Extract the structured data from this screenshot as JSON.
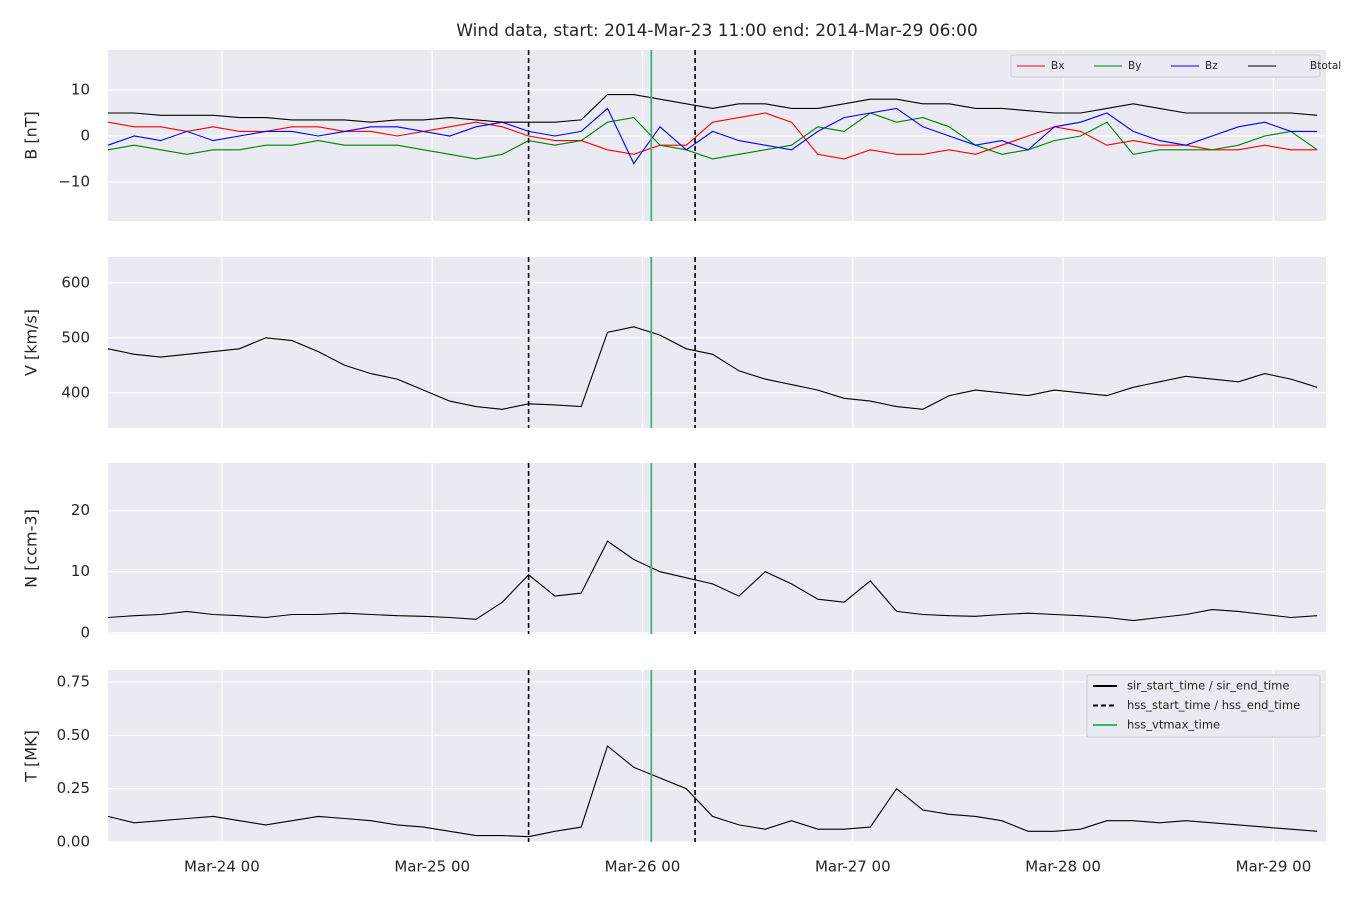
{
  "title": "Wind data, start: 2014-Mar-23 11:00  end: 2014-Mar-29 06:00",
  "x": [
    "2014-03-23 11:00",
    "2014-03-23 14:00",
    "2014-03-23 17:00",
    "2014-03-23 20:00",
    "2014-03-23 23:00",
    "2014-03-24 02:00",
    "2014-03-24 05:00",
    "2014-03-24 08:00",
    "2014-03-24 11:00",
    "2014-03-24 14:00",
    "2014-03-24 17:00",
    "2014-03-24 20:00",
    "2014-03-24 23:00",
    "2014-03-25 02:00",
    "2014-03-25 05:00",
    "2014-03-25 08:00",
    "2014-03-25 11:00",
    "2014-03-25 14:00",
    "2014-03-25 17:00",
    "2014-03-25 20:00",
    "2014-03-25 23:00",
    "2014-03-26 02:00",
    "2014-03-26 05:00",
    "2014-03-26 08:00",
    "2014-03-26 11:00",
    "2014-03-26 14:00",
    "2014-03-26 17:00",
    "2014-03-26 20:00",
    "2014-03-26 23:00",
    "2014-03-27 02:00",
    "2014-03-27 05:00",
    "2014-03-27 08:00",
    "2014-03-27 11:00",
    "2014-03-27 14:00",
    "2014-03-27 17:00",
    "2014-03-27 20:00",
    "2014-03-27 23:00",
    "2014-03-28 02:00",
    "2014-03-28 05:00",
    "2014-03-28 08:00",
    "2014-03-28 11:00",
    "2014-03-28 14:00",
    "2014-03-28 17:00",
    "2014-03-28 20:00",
    "2014-03-28 23:00",
    "2014-03-29 02:00",
    "2014-03-29 05:00"
  ],
  "x_axis": {
    "xlim": [
      "2014-03-23 11:00",
      "2014-03-29 06:00"
    ],
    "xticks": [
      {
        "value": "2014-03-24 00:00",
        "label": "Mar-24 00"
      },
      {
        "value": "2014-03-25 00:00",
        "label": "Mar-25 00"
      },
      {
        "value": "2014-03-26 00:00",
        "label": "Mar-26 00"
      },
      {
        "value": "2014-03-27 00:00",
        "label": "Mar-27 00"
      },
      {
        "value": "2014-03-28 00:00",
        "label": "Mar-28 00"
      },
      {
        "value": "2014-03-29 00:00",
        "label": "Mar-29 00"
      }
    ]
  },
  "events": [
    {
      "name": "sir_start_time / sir_end_time",
      "color": "#000000",
      "style": "solid"
    },
    {
      "name": "hss_start_time / hss_end_time",
      "color": "#000000",
      "style": "dashed",
      "times": [
        "2014-03-25 11:00",
        "2014-03-26 06:00"
      ]
    },
    {
      "name": "hss_vtmax_time",
      "color": "#3cb371",
      "style": "solid",
      "times": [
        "2014-03-26 01:00"
      ]
    }
  ],
  "chart_data": [
    {
      "type": "line",
      "ylabel": "B [nT]",
      "ylim": [
        -18.5,
        18.7
      ],
      "yticks": [
        {
          "value": -10,
          "label": "−10"
        },
        0,
        10
      ],
      "grid": true,
      "legend": "upper right",
      "series": [
        {
          "name": "Bx",
          "color": "#ff0000",
          "values": [
            3,
            2,
            2,
            1,
            2,
            1,
            1,
            2,
            2,
            1,
            1,
            0,
            1,
            2,
            3,
            2,
            0,
            -1,
            -1,
            -3,
            -4,
            -2,
            -2,
            3,
            4,
            5,
            3,
            -4,
            -5,
            -3,
            -4,
            -4,
            -3,
            -4,
            -2,
            0,
            2,
            1,
            -2,
            -1,
            -2,
            -2,
            -3,
            -3,
            -2,
            -3,
            -3
          ]
        },
        {
          "name": "By",
          "color": "#008000",
          "values": [
            -3,
            -2,
            -3,
            -4,
            -3,
            -3,
            -2,
            -2,
            -1,
            -2,
            -2,
            -2,
            -3,
            -4,
            -5,
            -4,
            -1,
            -2,
            -1,
            3,
            4,
            -2,
            -3,
            -5,
            -4,
            -3,
            -2,
            2,
            1,
            5,
            3,
            4,
            2,
            -2,
            -4,
            -3,
            -1,
            0,
            3,
            -4,
            -3,
            -3,
            -3,
            -2,
            0,
            1,
            -3
          ]
        },
        {
          "name": "Bz",
          "color": "#0000ff",
          "values": [
            -2,
            0,
            -1,
            1,
            -1,
            0,
            1,
            1,
            0,
            1,
            2,
            2,
            1,
            0,
            2,
            3,
            1,
            0,
            1,
            6,
            -6,
            2,
            -3,
            1,
            -1,
            -2,
            -3,
            1,
            4,
            5,
            6,
            2,
            0,
            -2,
            -1,
            -3,
            2,
            3,
            5,
            1,
            -1,
            -2,
            0,
            2,
            3,
            1,
            1
          ]
        },
        {
          "name": "Btotal",
          "color": "#000000",
          "values": [
            5,
            5,
            4.5,
            4.5,
            4.5,
            4,
            4,
            3.5,
            3.5,
            3.5,
            3,
            3.5,
            3.5,
            4,
            3.5,
            3,
            3,
            3,
            3.5,
            9,
            9,
            8,
            7,
            6,
            7,
            7,
            6,
            6,
            7,
            8,
            8,
            7,
            7,
            6,
            6,
            5.5,
            5,
            5,
            6,
            7,
            6,
            5,
            5,
            5,
            5,
            5,
            4.5
          ]
        }
      ]
    },
    {
      "type": "line",
      "ylabel": "V [km/s]",
      "ylim": [
        336,
        647
      ],
      "yticks": [
        400,
        500,
        600
      ],
      "grid": true,
      "series": [
        {
          "name": "V",
          "color": "#000000",
          "values": [
            480,
            470,
            465,
            470,
            475,
            480,
            500,
            495,
            475,
            450,
            435,
            425,
            405,
            385,
            375,
            370,
            380,
            378,
            375,
            510,
            520,
            505,
            480,
            470,
            440,
            425,
            415,
            405,
            390,
            385,
            375,
            370,
            395,
            405,
            400,
            395,
            405,
            400,
            395,
            410,
            420,
            430,
            425,
            420,
            435,
            425,
            410
          ]
        }
      ]
    },
    {
      "type": "line",
      "ylabel": "N [ccm-3]",
      "ylim": [
        -0.2,
        27.8
      ],
      "yticks": [
        0,
        10,
        20
      ],
      "grid": true,
      "series": [
        {
          "name": "N",
          "color": "#000000",
          "values": [
            2.5,
            2.8,
            3,
            3.5,
            3,
            2.8,
            2.5,
            3,
            3,
            3.2,
            3,
            2.8,
            2.7,
            2.5,
            2.2,
            5,
            9.5,
            6,
            6.5,
            15,
            12,
            10,
            9,
            8,
            6,
            10,
            8,
            5.5,
            5,
            8.5,
            3.5,
            3,
            2.8,
            2.7,
            3,
            3.2,
            3,
            2.8,
            2.5,
            2,
            2.5,
            3,
            3.8,
            3.5,
            3,
            2.5,
            2.8
          ]
        }
      ]
    },
    {
      "type": "line",
      "ylabel": "T [MK]",
      "ylim": [
        0,
        0.806
      ],
      "yticks": [
        {
          "value": 0,
          "label": "0.00"
        },
        {
          "value": 0.25,
          "label": "0.25"
        },
        {
          "value": 0.5,
          "label": "0.50"
        },
        {
          "value": 0.75,
          "label": "0.75"
        }
      ],
      "grid": true,
      "series": [
        {
          "name": "T",
          "color": "#000000",
          "values": [
            0.12,
            0.09,
            0.1,
            0.11,
            0.12,
            0.1,
            0.08,
            0.1,
            0.12,
            0.11,
            0.1,
            0.08,
            0.07,
            0.05,
            0.03,
            0.03,
            0.025,
            0.05,
            0.07,
            0.45,
            0.35,
            0.3,
            0.25,
            0.12,
            0.08,
            0.06,
            0.1,
            0.06,
            0.06,
            0.07,
            0.25,
            0.15,
            0.13,
            0.12,
            0.1,
            0.05,
            0.05,
            0.06,
            0.1,
            0.1,
            0.09,
            0.1,
            0.09,
            0.08,
            0.07,
            0.06,
            0.05
          ]
        }
      ]
    }
  ]
}
